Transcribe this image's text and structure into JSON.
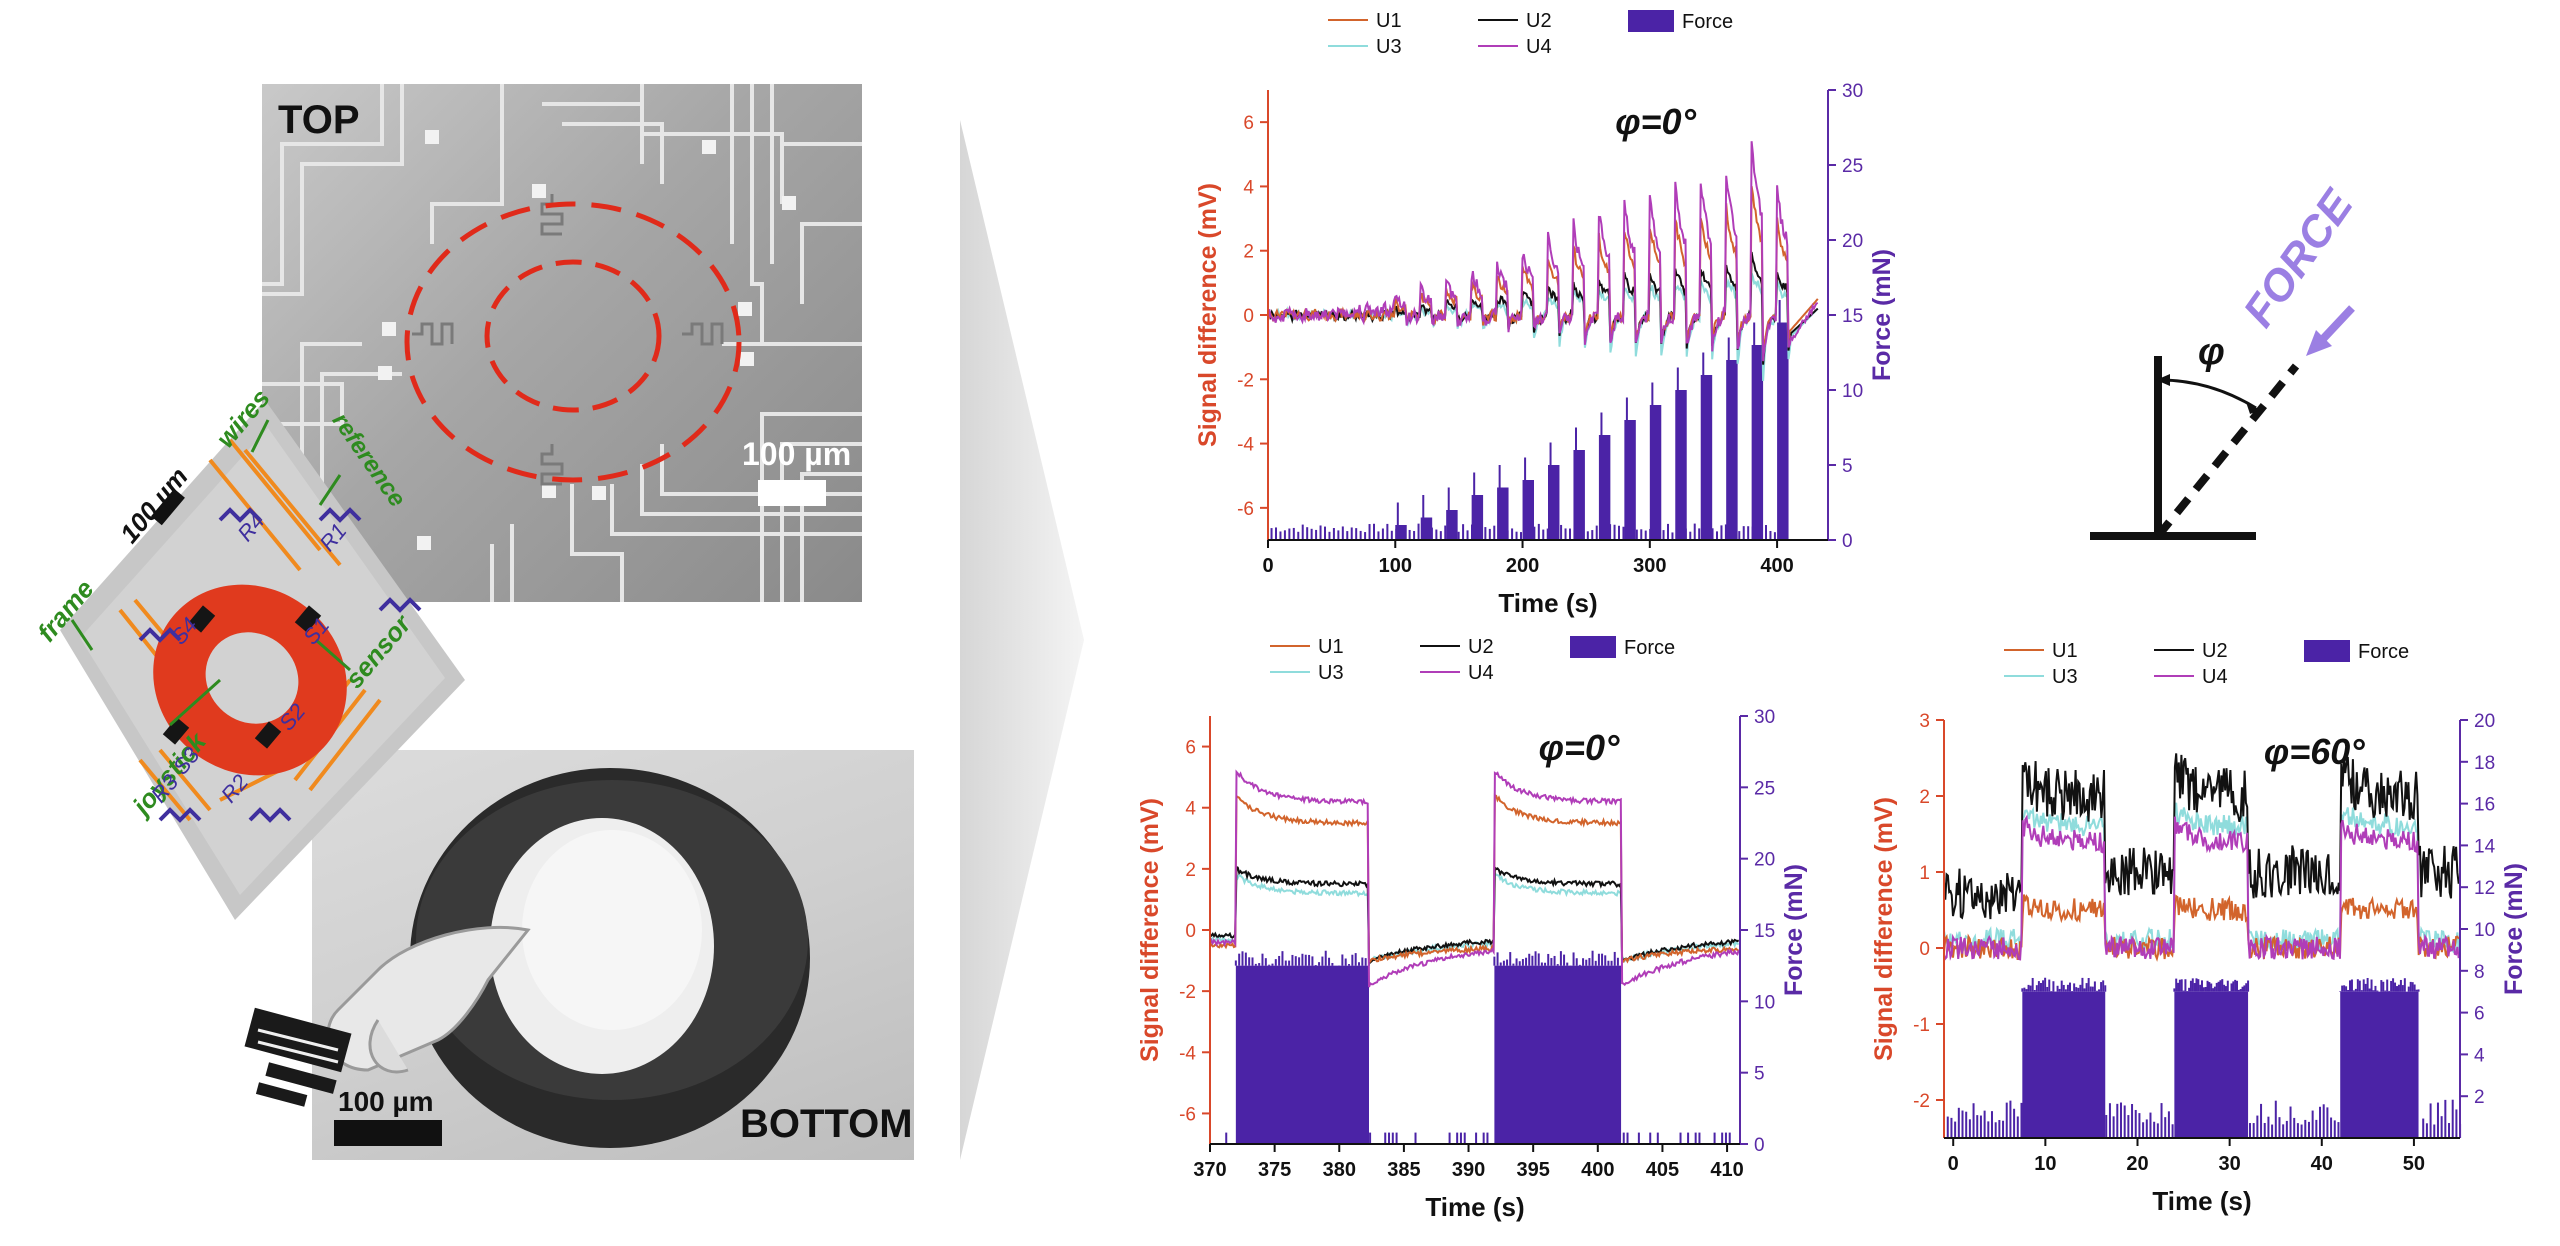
{
  "micrographs": {
    "top": {
      "label": "TOP",
      "scale_text": "100 µm"
    },
    "bottom": {
      "label": "BOTTOM",
      "scale_text": "100 µm"
    }
  },
  "schematic": {
    "scale_text": "100 µm",
    "labels": {
      "wires": "wires",
      "reference": "reference",
      "frame": "frame",
      "sensor": "sensor",
      "joystick": "joystick"
    },
    "resistors": [
      "R1",
      "R2",
      "R3",
      "R4"
    ],
    "sensors": [
      "S1",
      "S2",
      "S3",
      "S4"
    ]
  },
  "angle_diagram": {
    "force_label": "FORCE",
    "angle_symbol": "φ"
  },
  "colors": {
    "U1": "#d2642c",
    "U2": "#111111",
    "U3": "#8fdcdc",
    "U4": "#b03db8",
    "force": "#4b23a6",
    "left_axis": "#d9482a",
    "right_axis": "#5a2aa6",
    "label_green": "#2e8b1f",
    "ring_red": "#e03a1e",
    "wire_orange": "#f08a1e"
  },
  "chart_data": [
    {
      "id": "top",
      "type": "line+bar",
      "annotation": "φ=0°",
      "xlabel": "Time (s)",
      "ylabel_left": "Signal difference (mV)",
      "ylabel_right": "Force (mN)",
      "xlim": [
        0,
        440
      ],
      "ylim_left": [
        -7,
        7
      ],
      "ylim_right": [
        0,
        30
      ],
      "xticks": [
        0,
        100,
        200,
        300,
        400
      ],
      "yticks_left": [
        -6,
        -4,
        -2,
        0,
        2,
        4,
        6
      ],
      "yticks_right": [
        0,
        5,
        10,
        15,
        20,
        25,
        30
      ],
      "legend": [
        "U1",
        "U2",
        "Force",
        "U3",
        "U4"
      ],
      "force_steps": {
        "t": [
          100,
          120,
          140,
          160,
          180,
          200,
          220,
          240,
          260,
          280,
          300,
          320,
          340,
          360,
          380,
          400
        ],
        "force": [
          1,
          1.5,
          2,
          3,
          3.5,
          4,
          5,
          6,
          7,
          8,
          9,
          10,
          11,
          12,
          13,
          14.5
        ]
      },
      "peaks_U4": [
        0.5,
        0.8,
        1.0,
        1.3,
        1.6,
        2.0,
        2.4,
        2.8,
        3.2,
        3.5,
        3.7,
        4.0,
        4.2,
        4.5,
        5.5,
        4.0
      ]
    },
    {
      "id": "bottom-left",
      "type": "line+bar",
      "annotation": "φ=0°",
      "xlabel": "Time (s)",
      "ylabel_left": "Signal difference (mV)",
      "ylabel_right": "Force (mN)",
      "xlim": [
        370,
        411
      ],
      "ylim_left": [
        -7,
        7
      ],
      "ylim_right": [
        0,
        30
      ],
      "xticks": [
        370,
        375,
        380,
        385,
        390,
        395,
        400,
        405,
        410
      ],
      "yticks_left": [
        -6,
        -4,
        -2,
        0,
        2,
        4,
        6
      ],
      "yticks_right": [
        0,
        5,
        10,
        15,
        20,
        25,
        30
      ],
      "legend": [
        "U1",
        "U2",
        "Force",
        "U3",
        "U4"
      ],
      "pulses": [
        [
          372,
          382.3
        ],
        [
          392,
          401.8
        ]
      ],
      "pulse_force": 12.5,
      "levels_on": {
        "U1": 3.5,
        "U2": 1.5,
        "U3": 1.2,
        "U4": 4.2
      },
      "peak_on": {
        "U1": 4.4,
        "U2": 2.0,
        "U3": 1.8,
        "U4": 5.2
      },
      "after_off": {
        "U1": -1.0,
        "U2": -1.0,
        "U3": -1.0,
        "U4": -1.8
      },
      "baseline": {
        "U1": -0.5,
        "U2": -0.2,
        "U3": -0.3,
        "U4": -0.4
      }
    },
    {
      "id": "bottom-right",
      "type": "line+bar",
      "annotation": "φ=60°",
      "xlabel": "Time (s)",
      "ylabel_left": "Signal difference (mV)",
      "ylabel_right": "Force (mN)",
      "xlim": [
        -1,
        55
      ],
      "ylim_left": [
        -2.5,
        3
      ],
      "ylim_right": [
        0,
        20
      ],
      "xticks": [
        0,
        10,
        20,
        30,
        40,
        50
      ],
      "yticks_left": [
        -2,
        -1,
        0,
        1,
        2,
        3
      ],
      "yticks_right": [
        2,
        4,
        6,
        8,
        10,
        12,
        14,
        16,
        18,
        20
      ],
      "legend": [
        "U1",
        "U2",
        "Force",
        "U3",
        "U4"
      ],
      "pulses": [
        [
          7.5,
          16.5
        ],
        [
          24,
          32
        ],
        [
          42,
          50.5
        ]
      ],
      "pulse_force": 7,
      "base_force": 1,
      "levels_on": {
        "U1": 0.5,
        "U2": 2.0,
        "U3": 1.6,
        "U4": 1.4
      },
      "baseline": {
        "U1": 0.0,
        "U2": 0.7,
        "U3": 0.1,
        "U4": 0.0
      }
    }
  ]
}
